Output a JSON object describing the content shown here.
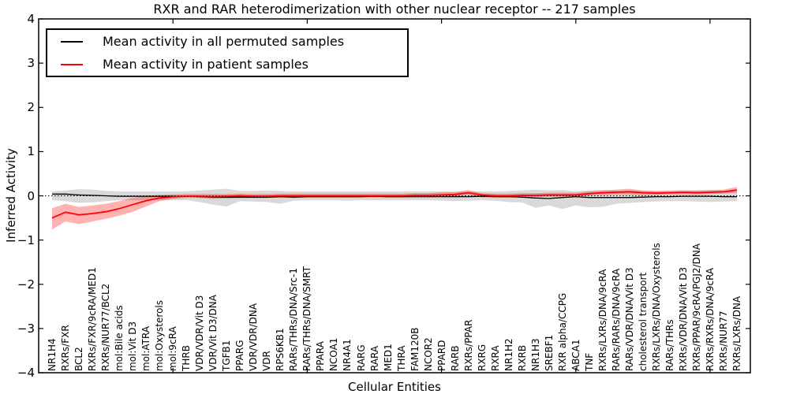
{
  "chart_data": {
    "type": "line",
    "title": "RXR and RAR heterodimerization with other nuclear receptor -- 217 samples",
    "xlabel": "Cellular Entities",
    "ylabel": "Inferred Activity",
    "ylim": [
      -4,
      4
    ],
    "yticks": [
      4,
      3,
      2,
      1,
      0,
      -1,
      -2,
      -3,
      -4
    ],
    "x_major_tick_positions": [
      10,
      20,
      30,
      40,
      50
    ],
    "grid": false,
    "legend_position": "upper left",
    "zero_line_style": "dotted",
    "categories": [
      "NR1H4",
      "RXRs/FXR",
      "BCL2",
      "RXRs/FXR/9cRA/MED1",
      "RXRs/NUR77/BCL2",
      "mol:Bile acids",
      "mol:Vit D3",
      "mol:ATRA",
      "mol:Oxysterols",
      "mol:9cRA",
      "THRB",
      "VDR/VDR/Vit D3",
      "VDR/Vit D3/DNA",
      "TGFB1",
      "PPARG",
      "VDR/VDR/DNA",
      "VDR",
      "RPS6KB1",
      "RARs/THRs/DNA/Src-1",
      "RARs/THRs/DNA/SMRT",
      "PPARA",
      "NCOA1",
      "NR4A1",
      "RARG",
      "RARA",
      "MED1",
      "THRA",
      "FAM120B",
      "NCOR2",
      "PPARD",
      "RARB",
      "RXRs/PPAR",
      "RXRG",
      "RXRA",
      "NR1H2",
      "RXRB",
      "NR1H3",
      "SREBF1",
      "RXR alpha/CCPG",
      "ABCA1",
      "TNF",
      "RXRs/LXRs/DNA/9cRA",
      "RARs/RARs/DNA/9cRA",
      "RARs/VDR/DNA/Vit D3",
      "cholesterol transport",
      "RXRs/LXRs/DNA/Oxysterols",
      "RARs/THRs",
      "RXRs/VDR/DNA/Vit D3",
      "RXRs/PPAR/9cRA/PGJ2/DNA",
      "RXRs/RXRs/DNA/9cRA",
      "RXRs/NUR77",
      "RXRs/LXRs/DNA"
    ],
    "series": [
      {
        "name": "Mean activity in all permuted samples",
        "color": "#000000",
        "line_width": 1.3,
        "band_color": "rgba(0,0,0,0.15)",
        "values": [
          0.04,
          0.04,
          0.02,
          0.01,
          0.0,
          -0.01,
          -0.01,
          -0.01,
          -0.01,
          -0.01,
          -0.01,
          -0.02,
          -0.03,
          -0.03,
          -0.03,
          -0.03,
          -0.03,
          -0.02,
          -0.03,
          -0.02,
          -0.02,
          -0.02,
          -0.02,
          -0.02,
          -0.01,
          -0.02,
          -0.02,
          -0.02,
          -0.02,
          -0.02,
          -0.02,
          -0.02,
          -0.01,
          -0.02,
          -0.02,
          -0.03,
          -0.05,
          -0.06,
          -0.04,
          -0.02,
          -0.04,
          -0.04,
          -0.04,
          -0.04,
          -0.03,
          -0.02,
          -0.02,
          -0.01,
          -0.01,
          -0.01,
          -0.02,
          -0.02
        ],
        "band_upper": [
          0.1,
          0.12,
          0.15,
          0.14,
          0.11,
          0.1,
          0.1,
          0.1,
          0.1,
          0.1,
          0.1,
          0.12,
          0.14,
          0.16,
          0.11,
          0.11,
          0.12,
          0.11,
          0.1,
          0.1,
          0.1,
          0.1,
          0.1,
          0.1,
          0.1,
          0.1,
          0.1,
          0.1,
          0.1,
          0.1,
          0.1,
          0.1,
          0.1,
          0.1,
          0.11,
          0.12,
          0.14,
          0.12,
          0.13,
          0.1,
          0.12,
          0.13,
          0.12,
          0.12,
          0.11,
          0.1,
          0.1,
          0.1,
          0.12,
          0.13,
          0.12,
          0.1
        ],
        "band_lower": [
          -0.1,
          -0.12,
          -0.16,
          -0.15,
          -0.12,
          -0.1,
          -0.1,
          -0.1,
          -0.1,
          -0.1,
          -0.1,
          -0.14,
          -0.2,
          -0.24,
          -0.12,
          -0.13,
          -0.14,
          -0.18,
          -0.11,
          -0.1,
          -0.1,
          -0.1,
          -0.11,
          -0.1,
          -0.1,
          -0.1,
          -0.1,
          -0.1,
          -0.1,
          -0.11,
          -0.12,
          -0.11,
          -0.1,
          -0.11,
          -0.14,
          -0.15,
          -0.27,
          -0.22,
          -0.3,
          -0.22,
          -0.26,
          -0.25,
          -0.18,
          -0.16,
          -0.14,
          -0.13,
          -0.12,
          -0.12,
          -0.13,
          -0.14,
          -0.13,
          -0.12
        ]
      },
      {
        "name": "Mean activity in patient samples",
        "color": "#ff0000",
        "line_width": 1.8,
        "band_color": "rgba(255,0,0,0.30)",
        "values": [
          -0.5,
          -0.37,
          -0.43,
          -0.4,
          -0.36,
          -0.29,
          -0.2,
          -0.11,
          -0.05,
          -0.02,
          -0.01,
          -0.01,
          -0.02,
          -0.01,
          0.0,
          -0.01,
          -0.01,
          0.0,
          0.0,
          0.0,
          0.0,
          0.0,
          0.0,
          0.0,
          0.0,
          0.0,
          0.0,
          0.01,
          0.01,
          0.02,
          0.03,
          0.07,
          0.02,
          0.0,
          0.0,
          0.01,
          0.01,
          0.02,
          0.02,
          0.02,
          0.05,
          0.07,
          0.08,
          0.09,
          0.07,
          0.06,
          0.07,
          0.08,
          0.07,
          0.08,
          0.09,
          0.13
        ],
        "band_upper": [
          -0.28,
          -0.18,
          -0.25,
          -0.22,
          -0.18,
          -0.12,
          -0.05,
          0.0,
          0.02,
          0.03,
          0.04,
          0.04,
          0.04,
          0.04,
          0.05,
          0.04,
          0.04,
          0.05,
          0.05,
          0.05,
          0.05,
          0.05,
          0.05,
          0.05,
          0.05,
          0.05,
          0.05,
          0.06,
          0.06,
          0.08,
          0.08,
          0.13,
          0.06,
          0.05,
          0.05,
          0.06,
          0.06,
          0.07,
          0.07,
          0.07,
          0.1,
          0.12,
          0.14,
          0.16,
          0.12,
          0.11,
          0.12,
          0.13,
          0.12,
          0.13,
          0.14,
          0.2
        ],
        "band_lower": [
          -0.76,
          -0.58,
          -0.64,
          -0.58,
          -0.52,
          -0.45,
          -0.36,
          -0.24,
          -0.12,
          -0.07,
          -0.05,
          -0.05,
          -0.07,
          -0.06,
          -0.05,
          -0.05,
          -0.05,
          -0.04,
          -0.04,
          -0.04,
          -0.04,
          -0.04,
          -0.04,
          -0.04,
          -0.04,
          -0.04,
          -0.04,
          -0.03,
          -0.03,
          -0.02,
          -0.01,
          0.01,
          -0.03,
          -0.04,
          -0.04,
          -0.03,
          -0.03,
          -0.02,
          -0.02,
          -0.02,
          0.01,
          0.02,
          0.03,
          0.03,
          0.02,
          0.02,
          0.03,
          0.03,
          0.03,
          0.04,
          0.05,
          0.07
        ]
      }
    ]
  }
}
